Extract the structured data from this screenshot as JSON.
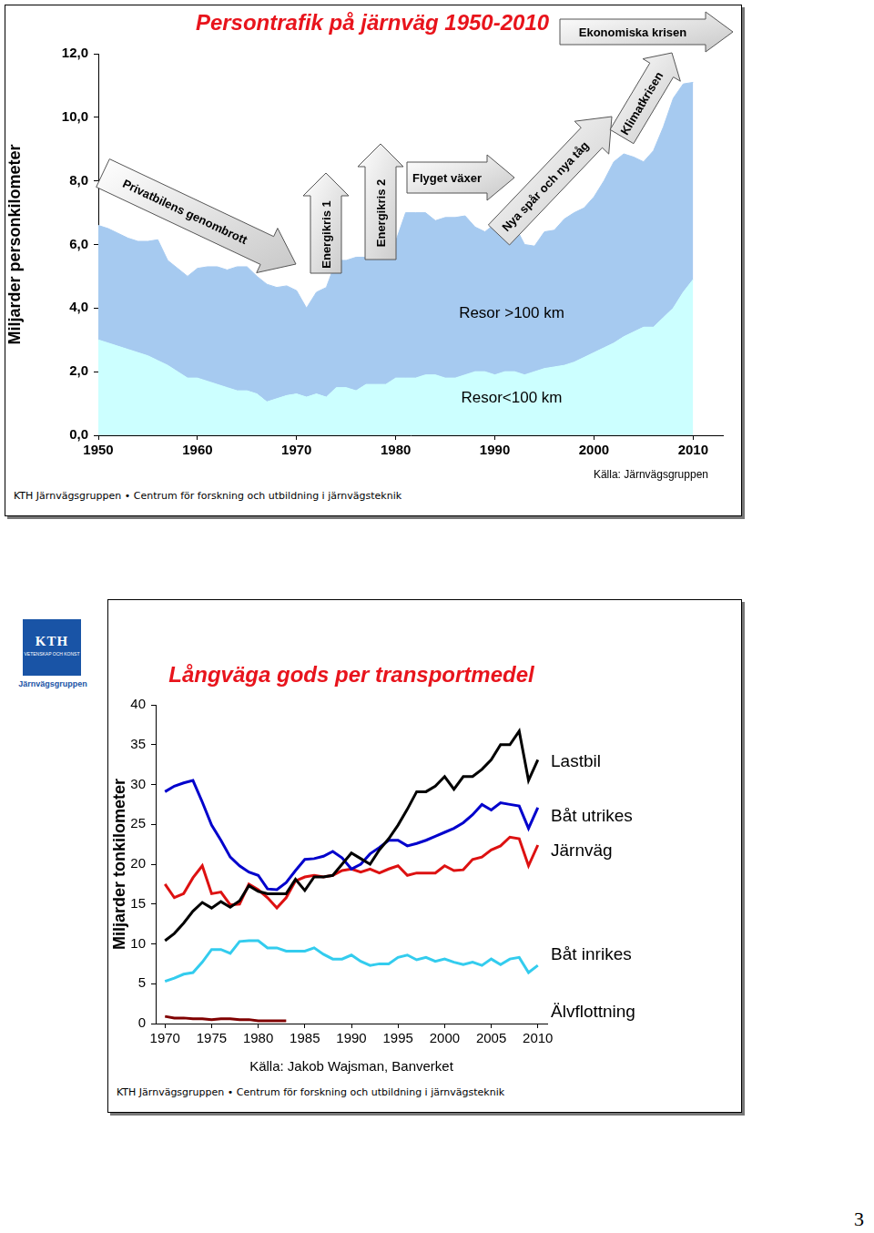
{
  "chart_data": [
    {
      "type": "area",
      "title": "Persontrafik på järnväg 1950-2010",
      "y_label": "Miljarder personkilometer",
      "x": [
        1950,
        1951,
        1952,
        1953,
        1954,
        1955,
        1956,
        1957,
        1958,
        1959,
        1960,
        1961,
        1962,
        1963,
        1964,
        1965,
        1966,
        1967,
        1968,
        1969,
        1970,
        1971,
        1972,
        1973,
        1974,
        1975,
        1976,
        1977,
        1978,
        1979,
        1980,
        1981,
        1982,
        1983,
        1984,
        1985,
        1986,
        1987,
        1988,
        1989,
        1990,
        1991,
        1992,
        1993,
        1994,
        1995,
        1996,
        1997,
        1998,
        1999,
        2000,
        2001,
        2002,
        2003,
        2004,
        2005,
        2006,
        2007,
        2008,
        2009,
        2010
      ],
      "series": [
        {
          "name": "Resor<100 km",
          "color": "#ccffff",
          "values": [
            3.0,
            2.9,
            2.8,
            2.7,
            2.6,
            2.5,
            2.35,
            2.2,
            2.0,
            1.8,
            1.8,
            1.7,
            1.6,
            1.5,
            1.4,
            1.4,
            1.3,
            1.05,
            1.15,
            1.25,
            1.3,
            1.2,
            1.3,
            1.2,
            1.5,
            1.5,
            1.4,
            1.6,
            1.6,
            1.6,
            1.8,
            1.8,
            1.8,
            1.9,
            1.9,
            1.8,
            1.8,
            1.9,
            2.0,
            2.0,
            1.9,
            2.0,
            2.0,
            1.9,
            2.0,
            2.1,
            2.15,
            2.2,
            2.3,
            2.45,
            2.6,
            2.75,
            2.9,
            3.1,
            3.25,
            3.4,
            3.4,
            3.7,
            4.0,
            4.5,
            4.9
          ]
        },
        {
          "name": "Resor >100 km",
          "color": "#a6caf0",
          "values": [
            3.6,
            3.6,
            3.55,
            3.5,
            3.5,
            3.6,
            3.8,
            3.3,
            3.25,
            3.2,
            3.45,
            3.6,
            3.7,
            3.7,
            3.9,
            3.9,
            3.7,
            3.7,
            3.5,
            3.45,
            3.25,
            2.8,
            3.2,
            3.45,
            4.0,
            4.0,
            4.2,
            4.0,
            4.0,
            4.0,
            4.3,
            5.2,
            5.2,
            5.1,
            4.85,
            5.05,
            5.05,
            5.0,
            4.55,
            4.4,
            4.75,
            4.6,
            4.6,
            4.1,
            3.95,
            4.3,
            4.3,
            4.6,
            4.7,
            4.7,
            4.9,
            5.25,
            5.7,
            5.75,
            5.5,
            5.2,
            5.55,
            6.0,
            6.6,
            6.55,
            6.2
          ]
        }
      ],
      "stacked": true,
      "xlim": [
        1950,
        2013
      ],
      "xticks": [
        1950,
        1960,
        1970,
        1980,
        1990,
        2000,
        2010
      ],
      "ylim": [
        0,
        12
      ],
      "yticks": [
        {
          "value": 0,
          "label": "0,0"
        },
        {
          "value": 2,
          "label": "2,0"
        },
        {
          "value": 4,
          "label": "4,0"
        },
        {
          "value": 6,
          "label": "6,0"
        },
        {
          "value": 8,
          "label": "8,0"
        },
        {
          "value": 10,
          "label": "10,0"
        },
        {
          "value": 12,
          "label": "12,0"
        }
      ],
      "grid": false,
      "annotations": [
        "Privatbilens genombrott",
        "Energikris 1",
        "Energikris 2",
        "Flyget växer",
        "Nya spår och nya tåg",
        "Klimatkrisen",
        "Ekonomiska krisen"
      ],
      "source": "Källa: Järnvägsgruppen",
      "footer": "KTH Järnvägsgruppen • Centrum för forskning och utbildning i järnvägsteknik"
    },
    {
      "type": "line",
      "title": "Långväga gods per transportmedel",
      "y_label": "Miljarder tonkilometer",
      "x_label": "Källa: Jakob Wajsman, Banverket",
      "x": [
        1970,
        1971,
        1972,
        1973,
        1974,
        1975,
        1976,
        1977,
        1978,
        1979,
        1980,
        1981,
        1982,
        1983,
        1984,
        1985,
        1986,
        1987,
        1988,
        1989,
        1990,
        1991,
        1992,
        1993,
        1994,
        1995,
        1996,
        1997,
        1998,
        1999,
        2000,
        2001,
        2002,
        2003,
        2004,
        2005,
        2006,
        2007,
        2008,
        2009,
        2010
      ],
      "series": [
        {
          "name": "Lastbil",
          "color": "#000000",
          "values": [
            10.4,
            11.3,
            12.6,
            14.1,
            15.2,
            14.5,
            15.3,
            14.6,
            15.4,
            17.3,
            16.6,
            16.3,
            16.3,
            16.3,
            18.1,
            16.7,
            18.4,
            18.4,
            18.6,
            20.0,
            21.4,
            20.7,
            20.0,
            21.8,
            23.2,
            24.9,
            26.9,
            29.1,
            29.1,
            29.8,
            31.0,
            29.4,
            31.0,
            31.0,
            31.9,
            33.1,
            35.0,
            35.0,
            36.7,
            30.5,
            33.1
          ]
        },
        {
          "name": "Båt utrikes",
          "color": "#0000cc",
          "values": [
            29.1,
            29.8,
            30.2,
            30.5,
            27.8,
            24.9,
            23.0,
            20.9,
            19.8,
            19.0,
            18.6,
            16.9,
            16.8,
            17.7,
            19.2,
            20.6,
            20.7,
            21.0,
            21.6,
            20.8,
            19.4,
            20.0,
            21.3,
            22.1,
            23.0,
            23.0,
            22.3,
            22.6,
            23.0,
            23.5,
            24.0,
            24.5,
            25.2,
            26.2,
            27.5,
            26.8,
            27.7,
            27.5,
            27.3,
            24.5,
            27.1
          ]
        },
        {
          "name": "Järnväg",
          "color": "#dd1111",
          "values": [
            17.5,
            15.8,
            16.3,
            18.3,
            19.8,
            16.3,
            16.5,
            14.9,
            15.0,
            17.5,
            16.8,
            15.8,
            14.5,
            15.8,
            17.9,
            18.4,
            18.6,
            18.4,
            18.6,
            19.2,
            19.4,
            19.0,
            19.4,
            18.9,
            19.4,
            19.8,
            18.6,
            18.9,
            18.9,
            18.9,
            19.8,
            19.2,
            19.3,
            20.6,
            20.9,
            21.8,
            22.3,
            23.4,
            23.2,
            19.8,
            22.4
          ]
        },
        {
          "name": "Båt inrikes",
          "color": "#33ccee",
          "values": [
            5.3,
            5.7,
            6.2,
            6.4,
            7.7,
            9.3,
            9.3,
            8.8,
            10.3,
            10.4,
            10.4,
            9.5,
            9.5,
            9.1,
            9.1,
            9.1,
            9.5,
            8.7,
            8.1,
            8.1,
            8.6,
            7.8,
            7.3,
            7.5,
            7.5,
            8.3,
            8.6,
            8.0,
            8.3,
            7.8,
            8.1,
            7.7,
            7.4,
            7.7,
            7.3,
            8.1,
            7.4,
            8.1,
            8.3,
            6.4,
            7.3
          ]
        },
        {
          "name": "Älvflottning",
          "color": "#800000",
          "values": [
            0.9,
            0.7,
            0.7,
            0.6,
            0.6,
            0.5,
            0.6,
            0.6,
            0.5,
            0.5,
            0.35,
            0.35,
            0.35,
            0.35,
            null,
            null,
            null,
            null,
            null,
            null,
            null,
            null,
            null,
            null,
            null,
            null,
            null,
            null,
            null,
            null,
            null,
            null,
            null,
            null,
            null,
            null,
            null,
            null,
            null,
            null,
            null
          ]
        }
      ],
      "xlim": [
        1969,
        2011
      ],
      "xticks": [
        1970,
        1975,
        1980,
        1985,
        1990,
        1995,
        2000,
        2005,
        2010
      ],
      "ylim": [
        0,
        40
      ],
      "yticks": [
        0,
        5,
        10,
        15,
        20,
        25,
        30,
        35,
        40
      ],
      "grid": false,
      "footer": "KTH Järnvägsgruppen • Centrum för forskning och utbildning i järnvägsteknik"
    }
  ],
  "logo": {
    "text": "KTH",
    "subtitle": "VETENSKAP OCH KONST",
    "caption": "Järnvägsgruppen"
  },
  "page_number": "3"
}
